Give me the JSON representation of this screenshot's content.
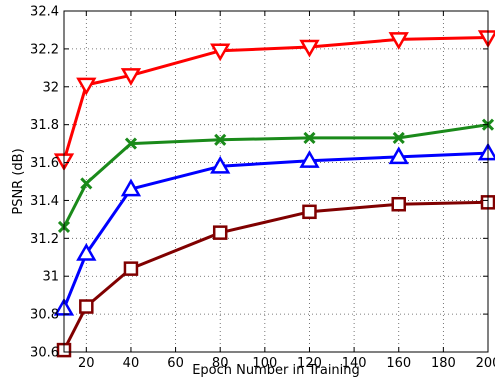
{
  "chart_data": {
    "type": "line",
    "title": "",
    "xlabel": "Epoch Number in Training",
    "ylabel": "PSNR (dB)",
    "xlim": [
      10,
      200
    ],
    "ylim": [
      30.6,
      32.4
    ],
    "x": [
      10,
      20,
      40,
      80,
      120,
      160,
      200
    ],
    "xticks": [
      20,
      40,
      60,
      80,
      100,
      120,
      140,
      160,
      180,
      200
    ],
    "yticks": [
      30.6,
      30.8,
      31,
      31.2,
      31.4,
      31.6,
      31.8,
      32,
      32.2,
      32.4
    ],
    "ytick_labels": [
      "30.6",
      "30.8",
      "31",
      "31.2",
      "31.4",
      "31.6",
      "31.8",
      "32",
      "32.2",
      "32.4"
    ],
    "grid": true,
    "legend": "none",
    "series": [
      {
        "color": "#ff0000",
        "marker": "triangle-down",
        "values": [
          31.61,
          32.01,
          32.06,
          32.19,
          32.21,
          32.25,
          32.26
        ]
      },
      {
        "color": "#1a8a1a",
        "marker": "x",
        "values": [
          31.26,
          31.49,
          31.7,
          31.72,
          31.73,
          31.73,
          31.8
        ]
      },
      {
        "color": "#0000ff",
        "marker": "triangle-up",
        "values": [
          30.83,
          31.12,
          31.46,
          31.58,
          31.61,
          31.63,
          31.65
        ]
      },
      {
        "color": "#800000",
        "marker": "square",
        "values": [
          30.61,
          30.84,
          31.04,
          31.23,
          31.34,
          31.38,
          31.39
        ]
      }
    ]
  }
}
